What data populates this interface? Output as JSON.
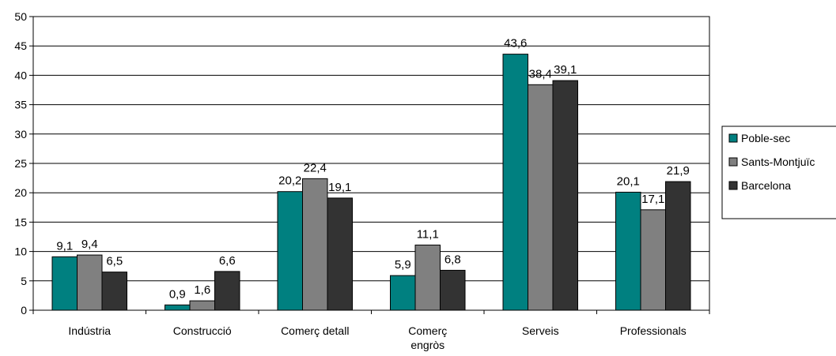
{
  "chart_data": {
    "type": "bar",
    "categories": [
      [
        "Indústria"
      ],
      [
        "Construcció"
      ],
      [
        "Comerç detall"
      ],
      [
        "Comerç",
        "engròs"
      ],
      [
        "Serveis"
      ],
      [
        "Professionals"
      ]
    ],
    "series": [
      {
        "name": "Poble-sec",
        "values": [
          9.1,
          0.9,
          20.2,
          5.9,
          43.6,
          20.1
        ],
        "labels": [
          "9,1",
          "0,9",
          "20,2",
          "5,9",
          "43,6",
          "20,1"
        ],
        "color": "#008080"
      },
      {
        "name": "Sants-Montjuïc",
        "values": [
          9.4,
          1.6,
          22.4,
          11.1,
          38.4,
          17.1
        ],
        "labels": [
          "9,4",
          "1,6",
          "22,4",
          "11,1",
          "38,4",
          "17,1"
        ],
        "color": "#808080"
      },
      {
        "name": "Barcelona",
        "values": [
          6.5,
          6.6,
          19.1,
          6.8,
          39.1,
          21.9
        ],
        "labels": [
          "6,5",
          "6,6",
          "19,1",
          "6,8",
          "39,1",
          "21,9"
        ],
        "color": "#333333"
      }
    ],
    "ylim": [
      0,
      50
    ],
    "yticks": [
      "0",
      "5",
      "10",
      "15",
      "20",
      "25",
      "30",
      "35",
      "40",
      "45",
      "50"
    ],
    "grid": true,
    "legend_position": "right"
  }
}
